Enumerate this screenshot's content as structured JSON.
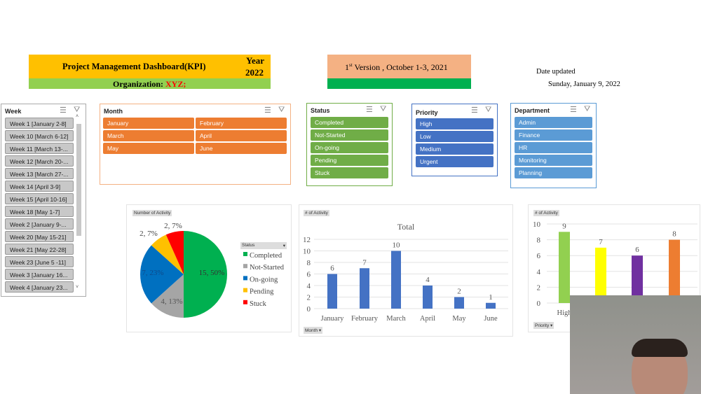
{
  "header": {
    "title": "Project Management Dashboard(KPI)",
    "year_label": "Year",
    "year": "2022",
    "org_label": "Organization:",
    "org_value": "XYZ;",
    "version_sup": "st",
    "version_num": "1",
    "version_text": " Version , October 1-3, 2021",
    "date_label": "Date updated",
    "date_value": "Sunday, January 9, 2022"
  },
  "colors": {
    "yellow": "#ffc000",
    "green": "#92d050",
    "salmon": "#f4b183",
    "darkgreen": "#00b050",
    "orange": "#ed7d31",
    "status_green": "#70ad47",
    "priority_blue": "#4472c4",
    "dept_blue": "#5b9bd5"
  },
  "slicers": {
    "week": {
      "title": "Week",
      "items": [
        "Week 1 [January 2-8]",
        "Week 10 [March 6-12]",
        "Week 11 [March 13-...",
        "Week 12 [March 20-...",
        "Week 13 [March 27-...",
        "Week 14 [April 3-9]",
        "Week 15 [April 10-16]",
        "Week 18 [May 1-7]",
        "Week 2 [January 9-...",
        "Week 20 [May 15-21]",
        "Week 21 [May 22-28]",
        "Week 23 [June 5 -11]",
        "Week 3 [January 16...",
        "Week 4 [January 23..."
      ]
    },
    "month": {
      "title": "Month",
      "items": [
        "January",
        "February",
        "March",
        "April",
        "May",
        "June"
      ]
    },
    "status": {
      "title": "Status",
      "items": [
        "Completed",
        "Not-Started",
        "On-going",
        "Pending",
        "Stuck"
      ]
    },
    "priority": {
      "title": "Priority",
      "items": [
        "High",
        "Low",
        "Medium",
        "Urgent"
      ]
    },
    "department": {
      "title": "Department",
      "items": [
        "Admin",
        "Finance",
        "HR",
        "Monitoring",
        "Planning"
      ]
    }
  },
  "chart_data": [
    {
      "type": "pie",
      "field_tag": "Number of Activity",
      "legend_title": "Status",
      "legend_position": "right",
      "categories": [
        "Completed",
        "Not-Started",
        "On-going",
        "Pending",
        "Stuck"
      ],
      "values": [
        15,
        4,
        7,
        2,
        2
      ],
      "labels": [
        "15, 50%",
        "4, 13%",
        "7, 23%",
        "2, 7%",
        "2, 7%"
      ],
      "colors": [
        "#00b050",
        "#a5a5a5",
        "#0070c0",
        "#ffc000",
        "#ff0000"
      ]
    },
    {
      "type": "bar",
      "field_tag": "# of Activity",
      "title": "Total",
      "axis_tag": "Month",
      "categories": [
        "January",
        "February",
        "March",
        "April",
        "May",
        "June"
      ],
      "values": [
        6,
        7,
        10,
        4,
        2,
        1
      ],
      "ylim": [
        0,
        12
      ],
      "yticks": [
        "0",
        "2",
        "4",
        "6",
        "8",
        "10",
        "12"
      ],
      "color": "#4472c4",
      "grid": true
    },
    {
      "type": "bar",
      "field_tag": "# of Activity",
      "axis_tag": "Priority",
      "categories": [
        "High",
        null,
        null,
        null
      ],
      "values": [
        9,
        7,
        6,
        8
      ],
      "ylim": [
        0,
        10
      ],
      "yticks": [
        "0",
        "2",
        "4",
        "6",
        "8",
        "10"
      ],
      "colors": [
        "#92d050",
        "#ffff00",
        "#7030a0",
        "#ed7d31"
      ],
      "grid": true
    }
  ]
}
